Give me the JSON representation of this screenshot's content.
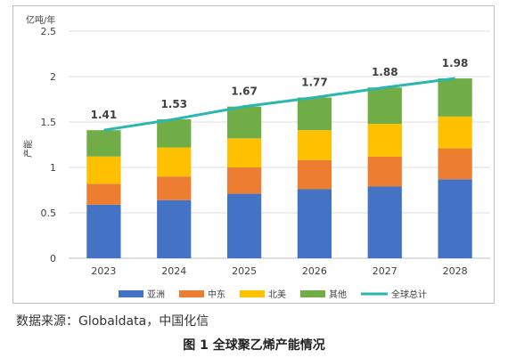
{
  "chart_data": {
    "type": "bar",
    "stacked": true,
    "categories": [
      "2023",
      "2024",
      "2025",
      "2026",
      "2027",
      "2028"
    ],
    "series": [
      {
        "name": "亚洲",
        "color": "#4472c4",
        "values": [
          0.59,
          0.64,
          0.71,
          0.76,
          0.79,
          0.87
        ]
      },
      {
        "name": "中东",
        "color": "#ed7d31",
        "values": [
          0.23,
          0.26,
          0.29,
          0.32,
          0.33,
          0.34
        ]
      },
      {
        "name": "北美",
        "color": "#ffc000",
        "values": [
          0.3,
          0.32,
          0.32,
          0.33,
          0.36,
          0.35
        ]
      },
      {
        "name": "其他",
        "color": "#70ad47",
        "values": [
          0.29,
          0.31,
          0.35,
          0.36,
          0.4,
          0.42
        ]
      }
    ],
    "line_series": {
      "name": "全球总计",
      "color": "#2ab7b0",
      "values": [
        1.41,
        1.53,
        1.67,
        1.77,
        1.88,
        1.98
      ]
    },
    "total_labels": [
      "1.41",
      "1.53",
      "1.67",
      "1.77",
      "1.88",
      "1.98"
    ],
    "y_unit": "亿吨/年",
    "ylabel": "产能",
    "ylim": [
      0,
      2.5
    ],
    "yticks": [
      "0",
      "0.5",
      "1",
      "1.5",
      "2",
      "2.5"
    ],
    "grid": true,
    "legend_position": "bottom"
  },
  "source_text": "数据来源：Globaldata，中国化信",
  "caption": "图 1 全球聚乙烯产能情况"
}
